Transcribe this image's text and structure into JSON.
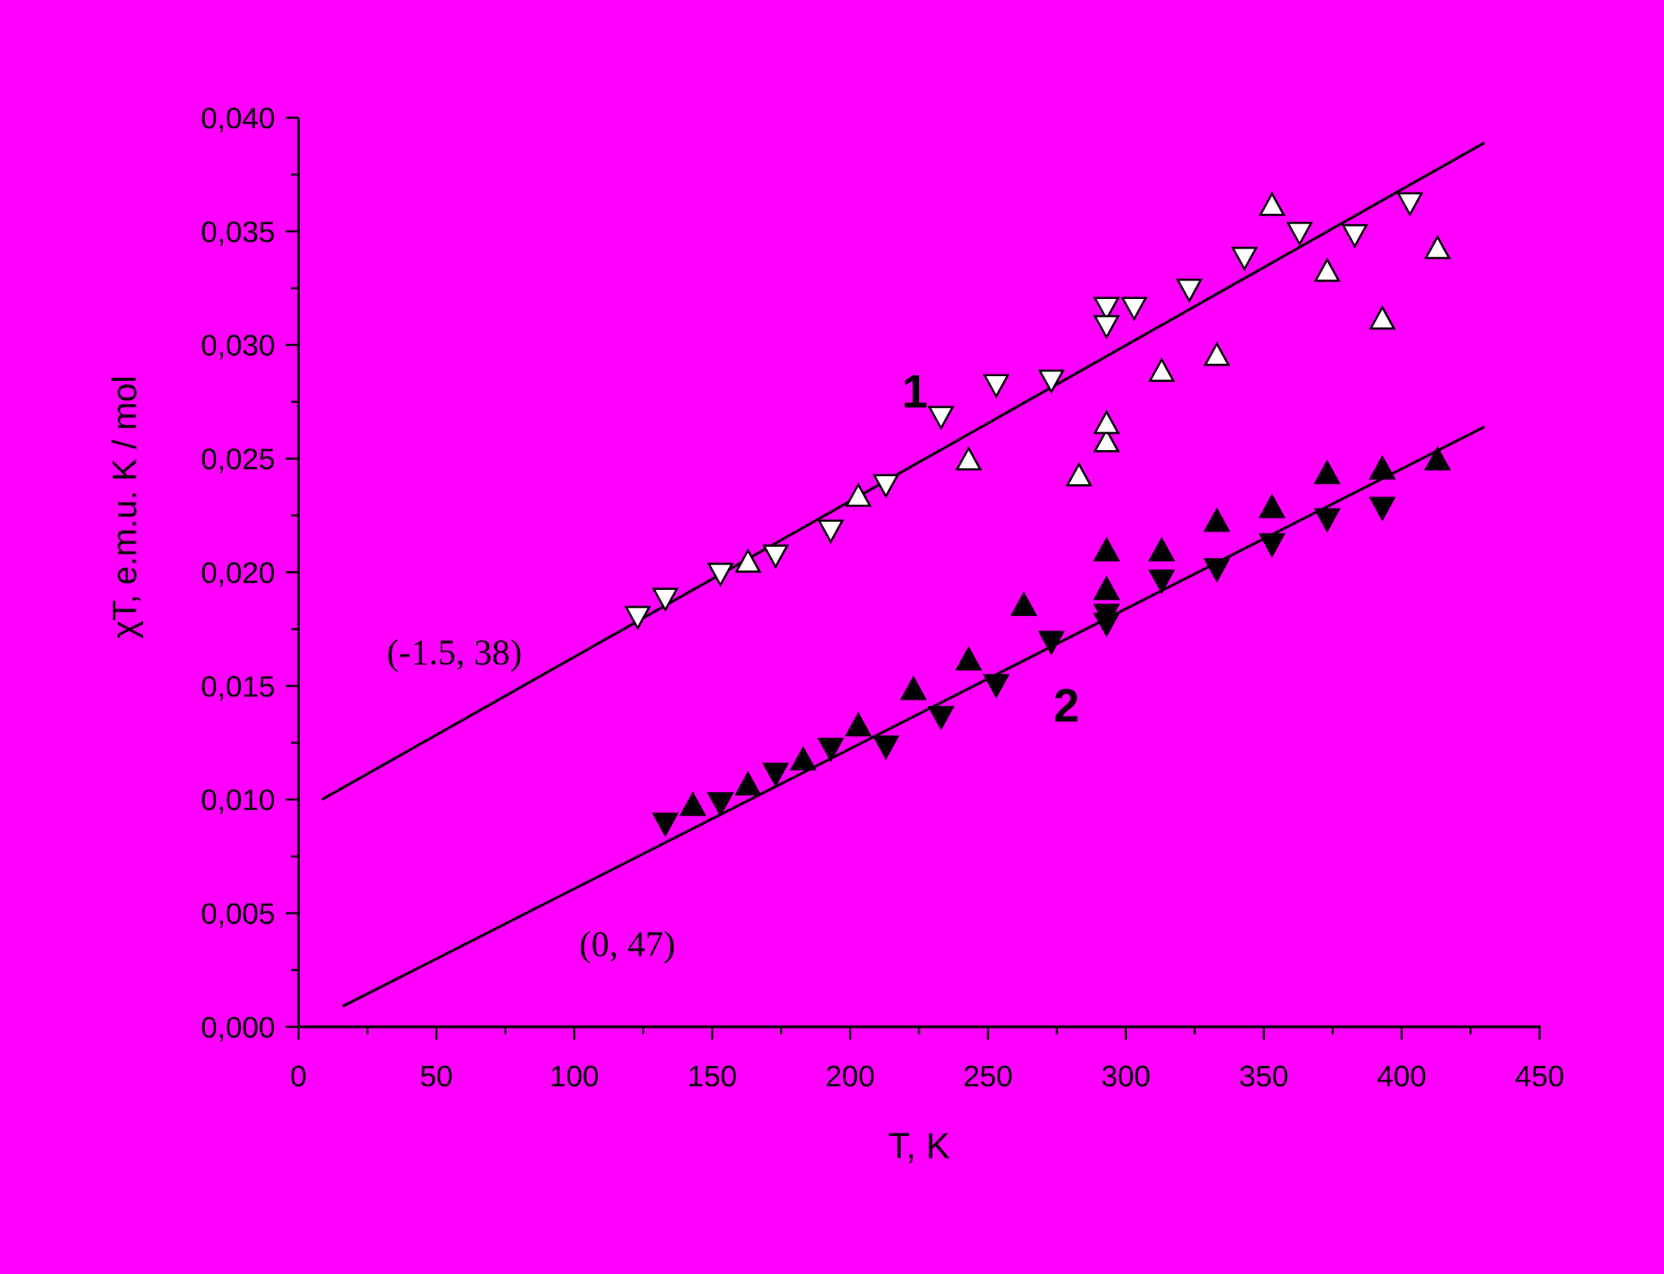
{
  "chart_data": {
    "type": "scatter",
    "xlabel": "T, K",
    "ylabel": "χT, e.m.u. K / mol",
    "xlim": [
      0,
      450
    ],
    "ylim": [
      0,
      0.04
    ],
    "xticks": [
      0,
      50,
      100,
      150,
      200,
      250,
      300,
      350,
      400,
      450
    ],
    "xminorticks": [
      25,
      75,
      125,
      175,
      225,
      275,
      325,
      375,
      425
    ],
    "yticks": [
      {
        "value": 0,
        "label": "0,000"
      },
      {
        "value": 0.005,
        "label": "0,005"
      },
      {
        "value": 0.01,
        "label": "0,010"
      },
      {
        "value": 0.015,
        "label": "0,015"
      },
      {
        "value": 0.02,
        "label": "0,020"
      },
      {
        "value": 0.025,
        "label": "0,025"
      },
      {
        "value": 0.03,
        "label": "0,030"
      },
      {
        "value": 0.035,
        "label": "0,035"
      },
      {
        "value": 0.04,
        "label": "0,040"
      }
    ],
    "yminorticks": [
      0.0025,
      0.0075,
      0.0125,
      0.0175,
      0.0225,
      0.0275,
      0.0325,
      0.0375
    ],
    "series": [
      {
        "marker": "down",
        "color": "#ffffff",
        "edgecolor": "#000000",
        "x": [
          123,
          133,
          153,
          173,
          193,
          213,
          233,
          253,
          273,
          293,
          293,
          303,
          323,
          343,
          363,
          383,
          403
        ],
        "values": [
          0.0181,
          0.0189,
          0.02,
          0.0208,
          0.0219,
          0.0239,
          0.0269,
          0.0283,
          0.0285,
          0.0317,
          0.0309,
          0.0317,
          0.0325,
          0.0339,
          0.035,
          0.0349,
          0.0363
        ]
      },
      {
        "marker": "up",
        "color": "#ffffff",
        "edgecolor": "#000000",
        "x": [
          163,
          203,
          243,
          283,
          293,
          293,
          313,
          333,
          353,
          373,
          393,
          413
        ],
        "values": [
          0.0204,
          0.0233,
          0.0249,
          0.0242,
          0.0257,
          0.0265,
          0.0288,
          0.0295,
          0.0361,
          0.0332,
          0.0311,
          0.0342
        ]
      },
      {
        "marker": "up",
        "color": "#000000",
        "edgecolor": "#000000",
        "x": [
          143,
          163,
          183,
          203,
          223,
          243,
          263,
          293,
          293,
          313,
          333,
          353,
          373,
          393,
          413
        ],
        "values": [
          0.0097,
          0.0106,
          0.0117,
          0.0132,
          0.0148,
          0.0161,
          0.0185,
          0.0192,
          0.0209,
          0.0209,
          0.0222,
          0.0228,
          0.0243,
          0.0245,
          0.0249
        ]
      },
      {
        "marker": "down",
        "color": "#000000",
        "edgecolor": "#000000",
        "x": [
          133,
          153,
          173,
          193,
          213,
          233,
          253,
          273,
          293,
          293,
          313,
          333,
          353,
          373,
          393
        ],
        "values": [
          0.009,
          0.0099,
          0.0112,
          0.0123,
          0.0124,
          0.0137,
          0.0151,
          0.017,
          0.0178,
          0.0182,
          0.0197,
          0.0202,
          0.0213,
          0.0224,
          0.0229
        ]
      }
    ],
    "fits": [
      {
        "color": "#000000",
        "x": [
          8.5,
          430
        ],
        "values": [
          0.01,
          0.0389
        ]
      },
      {
        "color": "#000000",
        "x": [
          16,
          430
        ],
        "values": [
          0.0009,
          0.0264
        ]
      }
    ],
    "annotations": [
      {
        "text": "1"
      },
      {
        "text": "2"
      },
      {
        "text": "(-1.5, 38)"
      },
      {
        "text": "(0, 47)"
      }
    ]
  }
}
